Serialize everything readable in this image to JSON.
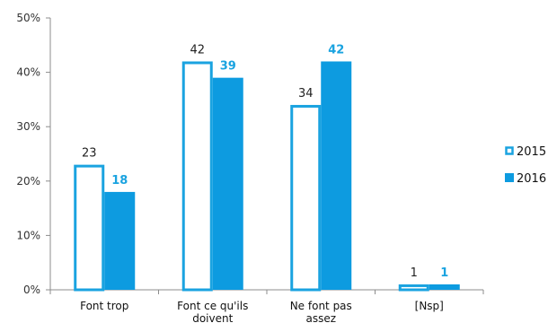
{
  "chart_data": {
    "type": "bar",
    "categories": [
      "Font trop",
      "Font ce qu'ils doivent",
      "Ne font pas assez",
      "[Nsp]"
    ],
    "category_lines": [
      [
        "Font trop"
      ],
      [
        "Font ce qu'ils",
        "doivent"
      ],
      [
        "Ne font pas",
        "assez"
      ],
      [
        "[Nsp]"
      ]
    ],
    "series": [
      {
        "name": "2015",
        "values": [
          23,
          42,
          34,
          1
        ],
        "style": "outline",
        "color": "#1aa3e0"
      },
      {
        "name": "2016",
        "values": [
          18,
          39,
          42,
          1
        ],
        "style": "filled",
        "color": "#0d9be0"
      }
    ],
    "yticks": [
      "0%",
      "10%",
      "20%",
      "30%",
      "40%",
      "50%"
    ],
    "ylim": [
      0,
      50
    ],
    "legend_position": "right",
    "grid": false
  }
}
